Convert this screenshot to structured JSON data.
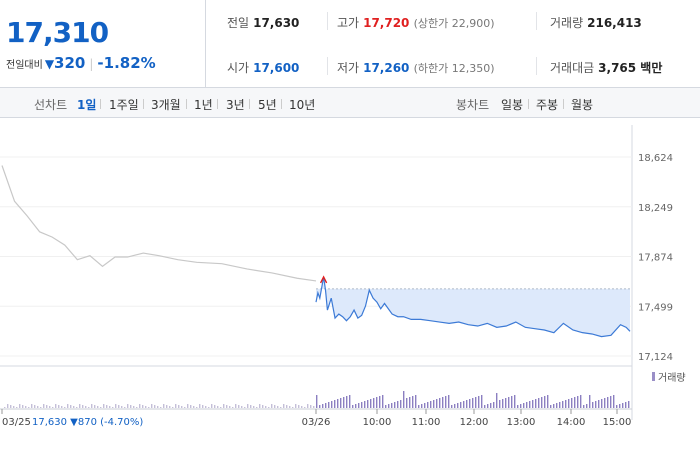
{
  "quote": {
    "price": "17,310",
    "change_label": "전일대비",
    "change_amount": "320",
    "change_percent": "-1.82%",
    "colors": {
      "down": "#1261c4",
      "up": "#e02020"
    }
  },
  "stats": {
    "prev_close": {
      "label": "전일",
      "value": "17,630"
    },
    "high": {
      "label": "고가",
      "value": "17,720",
      "extra": "(상한가 22,900)"
    },
    "volume": {
      "label": "거래량",
      "value": "216,413"
    },
    "open": {
      "label": "시가",
      "value": "17,600"
    },
    "low": {
      "label": "저가",
      "value": "17,260",
      "extra": "(하한가 12,350)"
    },
    "trade_value": {
      "label": "거래대금",
      "value": "3,765 백만"
    }
  },
  "period_tabs": {
    "line_label": "선차트",
    "line_items": [
      "1일",
      "1주일",
      "3개월",
      "1년",
      "3년",
      "5년",
      "10년"
    ],
    "active": "1일",
    "candle_label": "봉차트",
    "candle_items": [
      "일봉",
      "주봉",
      "월봉"
    ]
  },
  "chart_data": {
    "type": "line",
    "prev_day_note": "03/25  17,630 ▼870 (-4.70%)",
    "y_ticks": [
      "18,624",
      "18,249",
      "17,874",
      "17,499",
      "17,124"
    ],
    "y_values": [
      18624,
      18249,
      17874,
      17499,
      17124
    ],
    "x_ticks": [
      "03/25",
      "03/26",
      "10:00",
      "11:00",
      "12:00",
      "13:00",
      "14:00",
      "15:00"
    ],
    "volume_legend": "거래량",
    "prev_day_series": [
      {
        "t": 0,
        "v": 18560
      },
      {
        "t": 4,
        "v": 18290
      },
      {
        "t": 8,
        "v": 18180
      },
      {
        "t": 12,
        "v": 18060
      },
      {
        "t": 16,
        "v": 18020
      },
      {
        "t": 20,
        "v": 17960
      },
      {
        "t": 24,
        "v": 17850
      },
      {
        "t": 28,
        "v": 17880
      },
      {
        "t": 32,
        "v": 17800
      },
      {
        "t": 36,
        "v": 17870
      },
      {
        "t": 40,
        "v": 17870
      },
      {
        "t": 45,
        "v": 17900
      },
      {
        "t": 50,
        "v": 17880
      },
      {
        "t": 56,
        "v": 17850
      },
      {
        "t": 62,
        "v": 17830
      },
      {
        "t": 70,
        "v": 17820
      },
      {
        "t": 78,
        "v": 17780
      },
      {
        "t": 86,
        "v": 17750
      },
      {
        "t": 94,
        "v": 17710
      },
      {
        "t": 100,
        "v": 17690
      }
    ],
    "today_series": [
      {
        "t": 0,
        "v": 17530
      },
      {
        "t": 1,
        "v": 17600
      },
      {
        "t": 2,
        "v": 17560
      },
      {
        "t": 3,
        "v": 17640
      },
      {
        "t": 4,
        "v": 17720
      },
      {
        "t": 5,
        "v": 17620
      },
      {
        "t": 6,
        "v": 17470
      },
      {
        "t": 8,
        "v": 17560
      },
      {
        "t": 10,
        "v": 17410
      },
      {
        "t": 12,
        "v": 17440
      },
      {
        "t": 14,
        "v": 17420
      },
      {
        "t": 16,
        "v": 17390
      },
      {
        "t": 18,
        "v": 17420
      },
      {
        "t": 20,
        "v": 17470
      },
      {
        "t": 22,
        "v": 17410
      },
      {
        "t": 24,
        "v": 17430
      },
      {
        "t": 26,
        "v": 17500
      },
      {
        "t": 28,
        "v": 17620
      },
      {
        "t": 30,
        "v": 17560
      },
      {
        "t": 32,
        "v": 17530
      },
      {
        "t": 34,
        "v": 17480
      },
      {
        "t": 36,
        "v": 17520
      },
      {
        "t": 38,
        "v": 17480
      },
      {
        "t": 40,
        "v": 17440
      },
      {
        "t": 43,
        "v": 17420
      },
      {
        "t": 46,
        "v": 17420
      },
      {
        "t": 50,
        "v": 17400
      },
      {
        "t": 55,
        "v": 17400
      },
      {
        "t": 60,
        "v": 17390
      },
      {
        "t": 65,
        "v": 17380
      },
      {
        "t": 70,
        "v": 17370
      },
      {
        "t": 75,
        "v": 17380
      },
      {
        "t": 80,
        "v": 17360
      },
      {
        "t": 85,
        "v": 17350
      },
      {
        "t": 90,
        "v": 17370
      },
      {
        "t": 95,
        "v": 17340
      },
      {
        "t": 100,
        "v": 17350
      },
      {
        "t": 105,
        "v": 17380
      },
      {
        "t": 110,
        "v": 17340
      },
      {
        "t": 115,
        "v": 17330
      },
      {
        "t": 120,
        "v": 17320
      },
      {
        "t": 125,
        "v": 17300
      },
      {
        "t": 130,
        "v": 17370
      },
      {
        "t": 135,
        "v": 17320
      },
      {
        "t": 140,
        "v": 17300
      },
      {
        "t": 145,
        "v": 17290
      },
      {
        "t": 150,
        "v": 17270
      },
      {
        "t": 155,
        "v": 17280
      },
      {
        "t": 160,
        "v": 17360
      },
      {
        "t": 163,
        "v": 17340
      },
      {
        "t": 165,
        "v": 17310
      }
    ],
    "today_fill_level": 17630,
    "ylim": [
      17124,
      18624
    ]
  }
}
